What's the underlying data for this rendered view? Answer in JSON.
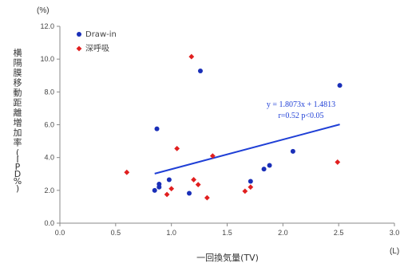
{
  "chart_data": {
    "type": "scatter",
    "xlabel": "一回換気量(TV)",
    "ylabel": "横隔膜移動距離増加率(IPD%)",
    "x_unit": "(L)",
    "y_unit": "(%)",
    "xlim": [
      0.0,
      3.0
    ],
    "ylim": [
      0.0,
      12.0
    ],
    "x_ticks": [
      "0.0",
      "0.5",
      "1.0",
      "1.5",
      "2.0",
      "2.5",
      "3.0"
    ],
    "y_ticks": [
      "0.0",
      "2.0",
      "4.0",
      "6.0",
      "8.0",
      "10.0",
      "12.0"
    ],
    "legend_position": "top-left",
    "grid": false,
    "series": [
      {
        "name": "Draw-in",
        "color": "#1a2fb8",
        "marker": "circle",
        "points": [
          {
            "x": 0.85,
            "y": 2.0
          },
          {
            "x": 0.87,
            "y": 5.75
          },
          {
            "x": 0.89,
            "y": 2.2
          },
          {
            "x": 0.89,
            "y": 2.38
          },
          {
            "x": 0.98,
            "y": 2.65
          },
          {
            "x": 1.16,
            "y": 1.82
          },
          {
            "x": 1.26,
            "y": 9.28
          },
          {
            "x": 1.71,
            "y": 2.55
          },
          {
            "x": 1.83,
            "y": 3.3
          },
          {
            "x": 1.88,
            "y": 3.52
          },
          {
            "x": 2.09,
            "y": 4.38
          },
          {
            "x": 2.51,
            "y": 8.4
          }
        ]
      },
      {
        "name": "深呼吸",
        "color": "#e11f1f",
        "marker": "diamond",
        "points": [
          {
            "x": 0.6,
            "y": 3.1
          },
          {
            "x": 0.96,
            "y": 1.75
          },
          {
            "x": 1.0,
            "y": 2.1
          },
          {
            "x": 1.05,
            "y": 4.55
          },
          {
            "x": 1.18,
            "y": 10.15
          },
          {
            "x": 1.2,
            "y": 2.65
          },
          {
            "x": 1.24,
            "y": 2.35
          },
          {
            "x": 1.32,
            "y": 1.55
          },
          {
            "x": 1.37,
            "y": 4.1
          },
          {
            "x": 1.66,
            "y": 1.95
          },
          {
            "x": 1.71,
            "y": 2.2
          },
          {
            "x": 2.49,
            "y": 3.72
          }
        ]
      }
    ],
    "trendline": {
      "color": "#1f3fd6",
      "x_range": [
        0.85,
        2.51
      ],
      "slope": 1.8073,
      "intercept": 1.4813,
      "equation": "y = 1.8073x + 1.4813",
      "stats": "r=0.52  p<0.05"
    }
  }
}
